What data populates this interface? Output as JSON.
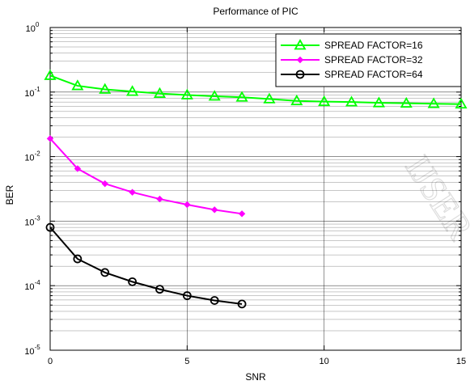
{
  "chart_data": {
    "type": "line",
    "title": "Performance of PIC",
    "xlabel": "SNR",
    "ylabel": "BER",
    "xlim": [
      0,
      15
    ],
    "ylim": [
      1e-05,
      1
    ],
    "yscale": "log",
    "grid": true,
    "legend_position": "top-right",
    "x_ticks": [
      "0",
      "5",
      "10",
      "15"
    ],
    "y_ticks": [
      {
        "base": "10",
        "exp": "0",
        "value": 1
      },
      {
        "base": "10",
        "exp": "-1",
        "value": 0.1
      },
      {
        "base": "10",
        "exp": "-2",
        "value": 0.01
      },
      {
        "base": "10",
        "exp": "-3",
        "value": 0.001
      },
      {
        "base": "10",
        "exp": "-4",
        "value": 0.0001
      },
      {
        "base": "10",
        "exp": "-5",
        "value": 1e-05
      }
    ],
    "series": [
      {
        "name": "SPREAD FACTOR=16",
        "color": "#00ff00",
        "marker": "triangle",
        "x": [
          0,
          1,
          2,
          3,
          4,
          5,
          6,
          7,
          8,
          9,
          10,
          11,
          12,
          13,
          14,
          15
        ],
        "values": [
          0.18,
          0.125,
          0.11,
          0.102,
          0.095,
          0.09,
          0.086,
          0.083,
          0.078,
          0.073,
          0.071,
          0.07,
          0.068,
          0.067,
          0.066,
          0.065
        ]
      },
      {
        "name": "SPREAD FACTOR=32",
        "color": "#ff00ff",
        "marker": "diamond",
        "x": [
          0,
          1,
          2,
          3,
          4,
          5,
          6,
          7
        ],
        "values": [
          0.019,
          0.0065,
          0.0038,
          0.0028,
          0.0022,
          0.0018,
          0.0015,
          0.0013
        ]
      },
      {
        "name": "SPREAD FACTOR=64",
        "color": "#000000",
        "marker": "circle",
        "x": [
          0,
          1,
          2,
          3,
          4,
          5,
          6,
          7
        ],
        "values": [
          0.0008,
          0.00026,
          0.00016,
          0.000115,
          8.8e-05,
          7e-05,
          5.9e-05,
          5.2e-05
        ]
      }
    ]
  },
  "watermark": {
    "text": "IJSER"
  }
}
